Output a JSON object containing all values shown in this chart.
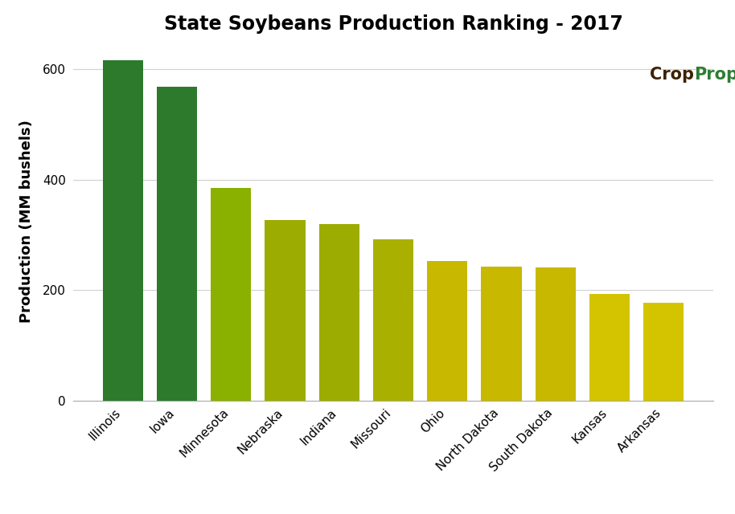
{
  "title": "State Soybeans Production Ranking - 2017",
  "ylabel": "Production (MM bushels)",
  "states": [
    "Illinois",
    "Iowa",
    "Minnesota",
    "Nebraska",
    "Indiana",
    "Missouri",
    "Ohio",
    "North Dakota",
    "South Dakota",
    "Kansas",
    "Arkansas"
  ],
  "values": [
    615,
    568,
    385,
    327,
    320,
    292,
    253,
    242,
    241,
    193,
    178
  ],
  "bar_colors": [
    "#2d7a2d",
    "#2d7a2d",
    "#8ab000",
    "#9cac00",
    "#9cac00",
    "#aab000",
    "#c8b800",
    "#c8b800",
    "#c8b800",
    "#d4c400",
    "#d4c400"
  ],
  "background_color": "#ffffff",
  "grid_color": "#d0d0d0",
  "ylim": [
    0,
    650
  ],
  "yticks": [
    0,
    200,
    400,
    600
  ],
  "watermark_color_crop": "#3d2200",
  "watermark_color_prophet": "#2e7d32",
  "title_fontsize": 17,
  "axis_label_fontsize": 13,
  "tick_fontsize": 11
}
